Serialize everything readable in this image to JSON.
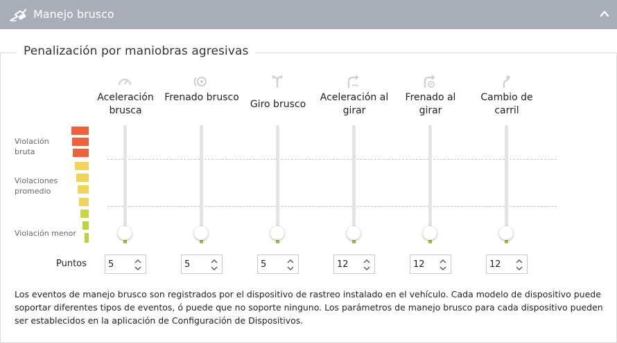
{
  "header": {
    "title": "Manejo brusco",
    "icon": "steering-skid-icon",
    "toggle_icon": "chevron-up-icon"
  },
  "section": {
    "title": "Penalización por maniobras agresivas"
  },
  "severity_labels": [
    "Violación bruta",
    "Violaciones promedio",
    "Violación menor"
  ],
  "severity_colors": [
    "#f0603a",
    "#f0d45a",
    "#b8d63a"
  ],
  "points_label": "Puntos",
  "columns": [
    {
      "label": "Aceleración brusca",
      "icon": "acceleration-gauge-icon",
      "points": "5",
      "level": 0
    },
    {
      "label": "Frenado brusco",
      "icon": "braking-icon",
      "points": "5",
      "level": 0
    },
    {
      "label": "Giro brusco",
      "icon": "sharp-turn-icon",
      "points": "5",
      "level": 0
    },
    {
      "label": "Aceleración al girar",
      "icon": "turn-acceleration-icon",
      "points": "12",
      "level": 0
    },
    {
      "label": "Frenado al girar",
      "icon": "turn-braking-icon",
      "points": "12",
      "level": 0
    },
    {
      "label": "Cambio de carril",
      "icon": "lane-change-icon",
      "points": "12",
      "level": 0
    }
  ],
  "footer": {
    "text": "Los eventos de manejo brusco son registrados por el dispositivo de rastreo instalado en el vehículo. Cada modelo de dispositivo puede soportar diferentes tipos de eventos, ó puede que no soporte ninguno. Los parámetros de manejo brusco para cada dispositivo pueden ser establecidos en la aplicación de Configuración de Dispositivos."
  }
}
